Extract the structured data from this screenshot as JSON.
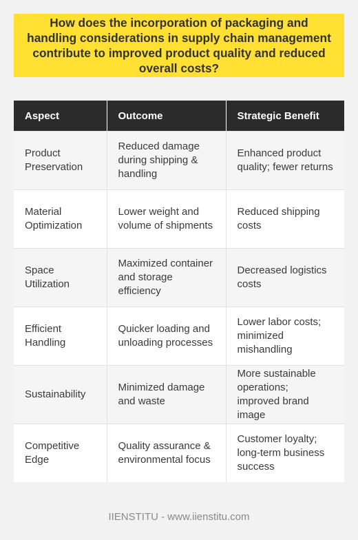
{
  "question": "How does the incorporation of packaging and handling considerations in supply chain management contribute to improved product quality and reduced overall costs?",
  "table": {
    "headers": [
      "Aspect",
      "Outcome",
      "Strategic Benefit"
    ],
    "rows": [
      {
        "aspect": "Product Preservation",
        "outcome": "Reduced damage during shipping & handling",
        "benefit": "Enhanced product quality; fewer returns"
      },
      {
        "aspect": "Material Optimization",
        "outcome": "Lower weight and volume of shipments",
        "benefit": "Reduced shipping costs"
      },
      {
        "aspect": "Space Utilization",
        "outcome": "Maximized container and storage efficiency",
        "benefit": "Decreased logistics costs"
      },
      {
        "aspect": "Efficient Handling",
        "outcome": "Quicker loading and unloading processes",
        "benefit": "Lower labor costs; minimized mishandling"
      },
      {
        "aspect": "Sustainability",
        "outcome": "Minimized damage and waste",
        "benefit": "More sustainable operations; improved brand image"
      },
      {
        "aspect": "Competitive Edge",
        "outcome": "Quality assurance & environmental focus",
        "benefit": "Customer loyalty; long-term business success"
      }
    ]
  },
  "footer": "IIENSTITU - www.iienstitu.com"
}
